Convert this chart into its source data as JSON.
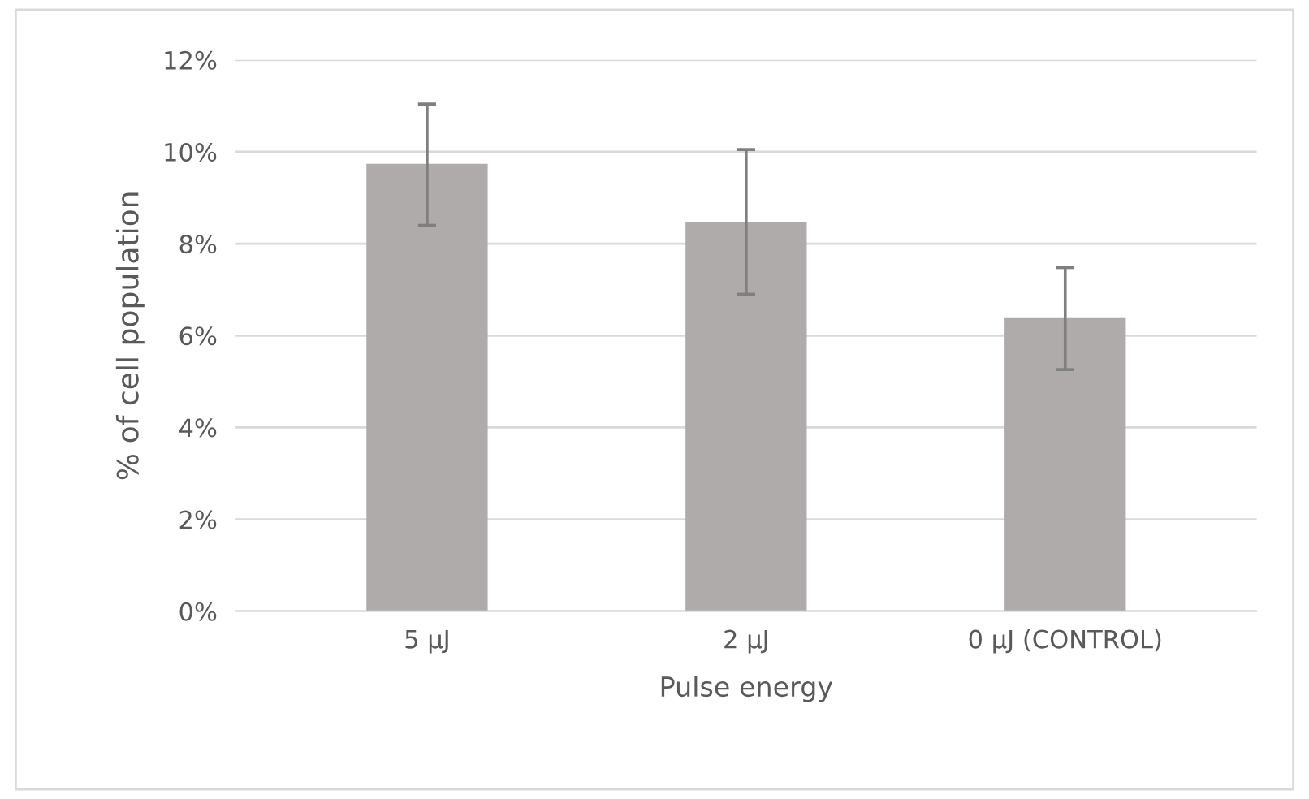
{
  "chart_data": {
    "type": "bar",
    "xlabel": "Pulse energy",
    "ylabel": "% of cell population",
    "categories": [
      "5 µJ",
      "2 µJ",
      "0 µJ (CONTROL)"
    ],
    "values": [
      9.74,
      8.48,
      6.38
    ],
    "color": "#afabab",
    "errors": [
      [
        8.4,
        11.04
      ],
      [
        6.9,
        10.05
      ],
      [
        5.26,
        7.48
      ]
    ],
    "ylim": [
      0,
      12
    ],
    "yticks": [
      {
        "value": 0,
        "label": "0%"
      },
      {
        "value": 2,
        "label": "2%"
      },
      {
        "value": 4,
        "label": "4%"
      },
      {
        "value": 6,
        "label": "6%"
      },
      {
        "value": 8,
        "label": "8%"
      },
      {
        "value": 10,
        "label": "10%"
      },
      {
        "value": 12,
        "label": "12%"
      }
    ],
    "grid": "y"
  }
}
